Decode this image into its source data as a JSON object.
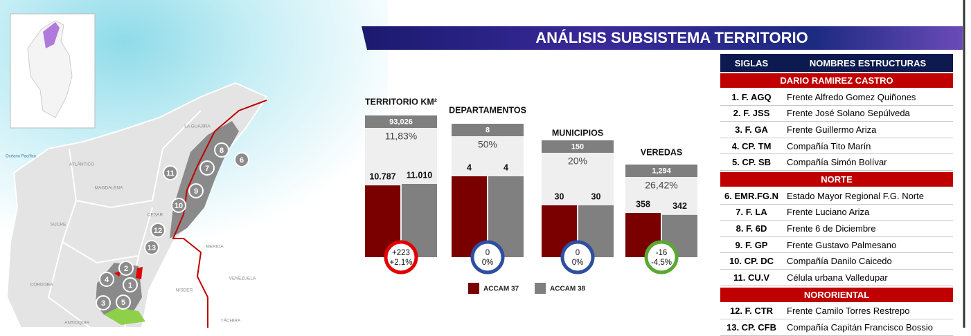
{
  "header": {
    "title": "ANÁLISIS SUBSISTEMA TERRITORIO"
  },
  "map": {
    "labels": [
      "LA GUAJIRA",
      "Océano Pacífico",
      "ATLÁNTICO",
      "MAGDALENA",
      "SUCRE",
      "CESAR",
      "MERIDA",
      "CÓRDOBA",
      "VENEZUELA",
      "N/SDER",
      "ANTIOQUIA",
      "TÁCHIRA"
    ],
    "markers": [
      "1",
      "2",
      "3",
      "4",
      "5",
      "6",
      "7",
      "8",
      "9",
      "10",
      "11",
      "12",
      "13"
    ]
  },
  "chart_data": {
    "type": "bar",
    "categories": [
      "TERRITORIO KM²",
      "DEPARTAMENTOS",
      "MUNICIPIOS",
      "VEREDAS"
    ],
    "totals": [
      "93,026",
      "8",
      "150",
      "1,294"
    ],
    "percentages": [
      "11,83%",
      "50%",
      "20%",
      "26,42%"
    ],
    "badges": [
      [
        "+223",
        "+2,1%"
      ],
      [
        "0",
        "0%"
      ],
      [
        "0",
        "0%"
      ],
      [
        "-16",
        "-4,5%"
      ]
    ],
    "badge_colors": [
      "#e00000",
      "#2e4fa0",
      "#2e4fa0",
      "#5aa832"
    ],
    "series": [
      {
        "name": "ACCAM 37",
        "color": "#7a0000",
        "values": [
          10787,
          4,
          30,
          358
        ],
        "value_labels": [
          "10.787",
          "4",
          "30",
          "358"
        ]
      },
      {
        "name": "ACCAM 38",
        "color": "#808080",
        "values": [
          11010,
          4,
          30,
          342
        ],
        "value_labels": [
          "11.010",
          "4",
          "30",
          "342"
        ]
      }
    ]
  },
  "table": {
    "header": [
      "SIGLAS",
      "NOMBRES ESTRUCTURAS"
    ],
    "groups": [
      {
        "name": "DARIO RAMIREZ CASTRO",
        "rows": [
          [
            "1. F. AGQ",
            "Frente Alfredo Gomez Quiñones"
          ],
          [
            "2. F. JSS",
            "Frente José Solano Sepúlveda"
          ],
          [
            "3. F. GA",
            "Frente Guillermo Ariza"
          ],
          [
            "4. CP. TM",
            "Compañía Tito Marín"
          ],
          [
            "5. CP. SB",
            "Compañía Simón Bolívar"
          ]
        ]
      },
      {
        "name": "NORTE",
        "rows": [
          [
            "6. EMR.FG.N",
            "Estado Mayor Regional F.G. Norte"
          ],
          [
            "7. F. LA",
            "Frente Luciano Ariza"
          ],
          [
            "8. F. 6D",
            "Frente 6 de Diciembre"
          ],
          [
            "9. F. GP",
            "Frente Gustavo Palmesano"
          ],
          [
            "10. CP. DC",
            "Compañía Danilo Caicedo"
          ],
          [
            "11. CU.V",
            "Célula urbana Valledupar"
          ]
        ]
      },
      {
        "name": "NORORIENTAL",
        "rows": [
          [
            "12. F. CTR",
            "Frente Camilo Torres Restrepo"
          ],
          [
            "13. CP. CFB",
            "Compañía Capitán Francisco Bossio"
          ]
        ]
      }
    ]
  }
}
